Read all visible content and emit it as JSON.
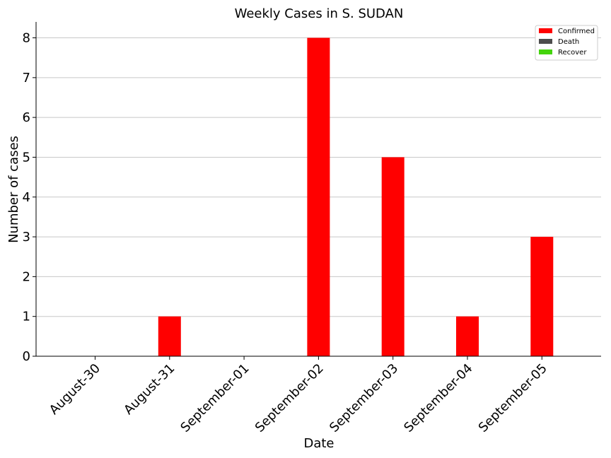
{
  "chart_data": {
    "type": "bar",
    "title": "Weekly Cases in S. SUDAN",
    "xlabel": "Date",
    "ylabel": "Number of cases",
    "categories": [
      "August-30",
      "August-31",
      "September-01",
      "September-02",
      "September-03",
      "September-04",
      "September-05"
    ],
    "series": [
      {
        "name": "Confirmed",
        "color": "#ff0000",
        "values": [
          0,
          1,
          0,
          8,
          5,
          1,
          3
        ]
      },
      {
        "name": "Death",
        "color": "#4d4d4d",
        "values": [
          0,
          0,
          0,
          0,
          0,
          0,
          0
        ]
      },
      {
        "name": "Recover",
        "color": "#44d40c",
        "values": [
          0,
          0,
          0,
          0,
          0,
          0,
          0
        ]
      }
    ],
    "ylim": [
      0,
      8.4
    ],
    "yticks": [
      0,
      1,
      2,
      3,
      4,
      5,
      6,
      7,
      8
    ],
    "grid": "y",
    "legend_position": "top-right"
  }
}
